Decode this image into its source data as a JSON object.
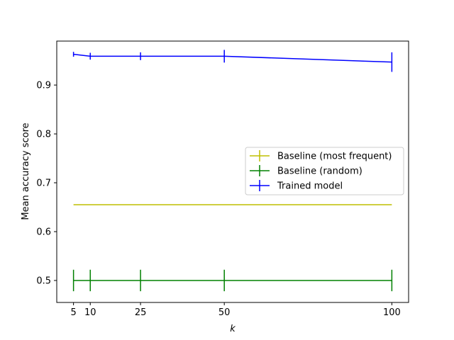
{
  "chart_data": {
    "type": "line",
    "xlabel": "k",
    "ylabel": "Mean accuracy score",
    "x": [
      5,
      10,
      25,
      50,
      100
    ],
    "xticks": [
      "5",
      "10",
      "25",
      "50",
      "100"
    ],
    "yticks": [
      "0.5",
      "0.6",
      "0.7",
      "0.8",
      "0.9"
    ],
    "xlim": [
      0,
      105
    ],
    "ylim": [
      0.455,
      0.99
    ],
    "grid": false,
    "legend_placement": "center-right",
    "series": [
      {
        "name": "Baseline (most frequent)",
        "color": "#bfbf00",
        "values": [
          0.655,
          0.655,
          0.655,
          0.655,
          0.655
        ],
        "errors": [
          0,
          0,
          0,
          0,
          0
        ]
      },
      {
        "name": "Baseline (random)",
        "color": "#008000",
        "values": [
          0.5,
          0.5,
          0.5,
          0.5,
          0.5
        ],
        "errors": [
          0.022,
          0.022,
          0.022,
          0.022,
          0.022
        ]
      },
      {
        "name": "Trained model",
        "color": "#0000ff",
        "values": [
          0.963,
          0.959,
          0.959,
          0.959,
          0.947
        ],
        "errors": [
          0.005,
          0.007,
          0.008,
          0.013,
          0.02
        ]
      }
    ]
  }
}
